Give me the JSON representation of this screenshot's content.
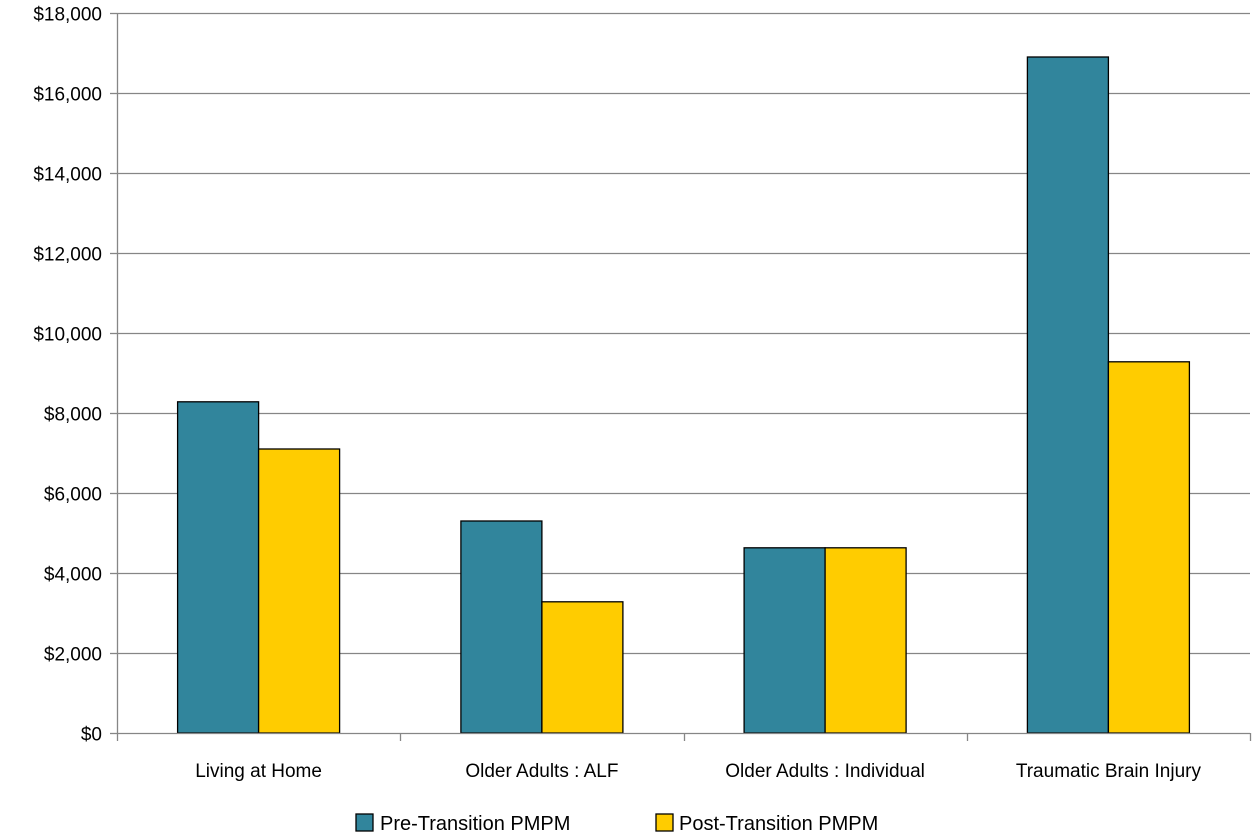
{
  "chart_data": {
    "type": "bar",
    "title": "",
    "xlabel": "",
    "ylabel": "",
    "categories": [
      "Living at Home",
      "Older Adults : ALF",
      "Older Adults : Individual",
      "Traumatic Brain Injury"
    ],
    "series": [
      {
        "name": "Pre-Transition PMPM",
        "color": "#31859c",
        "values": [
          8280,
          5300,
          4630,
          16900
        ]
      },
      {
        "name": "Post-Transition PMPM",
        "color": "#ffcc00",
        "values": [
          7100,
          3280,
          4630,
          9280
        ]
      }
    ],
    "ylim": [
      0,
      18000
    ],
    "y_ticks": [
      0,
      2000,
      4000,
      6000,
      8000,
      10000,
      12000,
      14000,
      16000,
      18000
    ],
    "y_tick_labels": [
      "$0",
      "$2,000",
      "$4,000",
      "$6,000",
      "$8,000",
      "$10,000",
      "$12,000",
      "$14,000",
      "$16,000",
      "$18,000"
    ],
    "grid": true,
    "legend_position": "bottom-center",
    "colors": {
      "gridline": "#868686",
      "axis": "#868686",
      "bar_border": "#000000"
    }
  }
}
